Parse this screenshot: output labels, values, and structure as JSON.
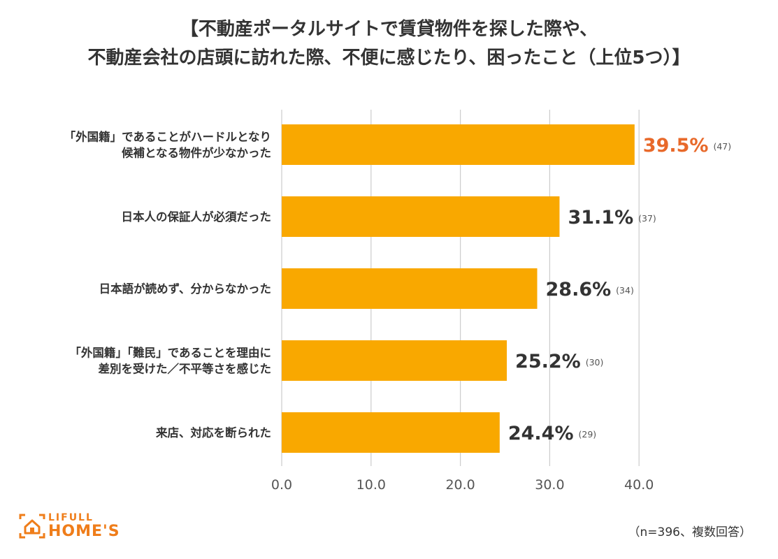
{
  "title_lines": [
    "【不動産ポータルサイトで賃貸物件を探した際や、",
    "不動産会社の店頭に訪れた際、不便に感じたり、困ったこと（上位5つ）】"
  ],
  "chart_data": {
    "type": "bar",
    "orientation": "horizontal",
    "categories": [
      [
        "「外国籍」であることがハードルとなり",
        "候補となる物件が少なかった"
      ],
      [
        "日本人の保証人が必須だった"
      ],
      [
        "日本語が読めず、分からなかった"
      ],
      [
        "「外国籍」「難民」であることを理由に",
        "差別を受けた／不平等さを感じた"
      ],
      [
        "来店、対応を断られた"
      ]
    ],
    "values": [
      39.5,
      31.1,
      28.6,
      25.2,
      24.4
    ],
    "value_labels": [
      "39.5%",
      "31.1%",
      "28.6%",
      "25.2%",
      "24.4%"
    ],
    "counts": [
      "(47)",
      "(37)",
      "(34)",
      "(30)",
      "(29)"
    ],
    "xlim": [
      0,
      40
    ],
    "xticks": [
      0,
      10,
      20,
      30,
      40
    ],
    "xtick_labels": [
      "0.0",
      "10.0",
      "20.0",
      "30.0",
      "40.0"
    ],
    "grid": true,
    "bar_color": "#f9a800",
    "highlight_color": "#e8692a",
    "highlight_index": 0,
    "label_color": "#333333",
    "grid_color": "#cccccc"
  },
  "brand": {
    "line1": "LIFULL",
    "line2": "HOME'S",
    "color": "#ef7d1a",
    "icon": "house-logo-icon"
  },
  "note": "（n=396、複数回答）"
}
